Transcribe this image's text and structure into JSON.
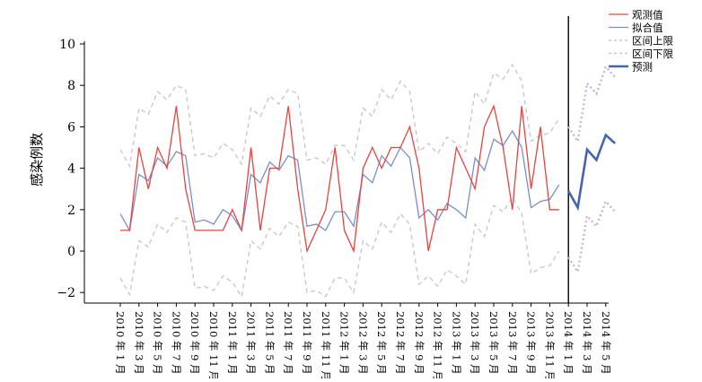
{
  "chart_data": {
    "type": "line",
    "ylabel": "感染例数",
    "ylim": [
      -2.5,
      10.5
    ],
    "yticks": [
      -2,
      0,
      2,
      4,
      6,
      8,
      10
    ],
    "ytick_labels": [
      "−2",
      "0",
      "2",
      "4",
      "6",
      "8",
      "10"
    ],
    "x_tick_labels": [
      "2010 年 1 月",
      "2010 年 3 月",
      "2010 年 5 月",
      "2010 年 7 月",
      "2010 年 9 月",
      "2010 年 11 月",
      "2011 年 1 月",
      "2011 年 3 月",
      "2011 年 5 月",
      "2011 年 7 月",
      "2011 年 9 月",
      "2011 年 11 月",
      "2012 年 1 月",
      "2012 年 3 月",
      "2012 年 5 月",
      "2012 年 7 月",
      "2012 年 9 月",
      "2012 年 11 月",
      "2013 年 1 月",
      "2013 年 3 月",
      "2013 年 5 月",
      "2013 年 7 月",
      "2013 年 9 月",
      "2013 年 11 月",
      "2014 年 1 月",
      "2014 年 3 月",
      "2014 年 5 月"
    ],
    "divider_at": "2014 年 1 月",
    "legend_position": "top-right",
    "series": [
      {
        "name": "观测值",
        "color": "#e8433f",
        "style": "solid",
        "values": [
          1,
          1,
          5,
          3,
          5,
          4,
          7,
          3,
          1,
          1,
          1,
          1,
          2,
          1,
          5,
          1,
          4,
          4,
          7,
          3,
          0,
          1,
          2,
          5,
          1,
          0,
          4,
          5,
          4,
          5,
          5,
          6,
          4,
          0,
          2,
          2,
          5,
          4,
          3,
          6,
          7,
          5,
          2,
          7,
          3,
          6,
          2,
          2
        ]
      },
      {
        "name": "拟合值",
        "color": "#7a8fc7",
        "style": "solid",
        "values": [
          1.8,
          1,
          3.7,
          3.4,
          4.5,
          4.1,
          4.8,
          4.6,
          1.4,
          1.5,
          1.3,
          2,
          1.7,
          1,
          3.7,
          3.3,
          4.3,
          3.9,
          4.6,
          4.4,
          1.2,
          1.3,
          1,
          1.9,
          1.9,
          1.2,
          3.7,
          3.3,
          4.6,
          4.1,
          5,
          4.5,
          1.6,
          2,
          1.5,
          2.3,
          2,
          1.6,
          4.5,
          3.9,
          5.4,
          5.1,
          5.8,
          5,
          2.1,
          2.4,
          2.5,
          3.2
        ]
      },
      {
        "name": "区间上限",
        "color": "#c8c8d2",
        "style": "dashed",
        "values": [
          4.9,
          4.1,
          6.9,
          6.6,
          7.7,
          7.3,
          8,
          7.8,
          4.6,
          4.7,
          4.5,
          5.2,
          4.9,
          4.2,
          6.9,
          6.5,
          7.5,
          7.1,
          7.8,
          7.6,
          4.4,
          4.5,
          4.2,
          5.1,
          5.1,
          4.4,
          6.9,
          6.5,
          7.8,
          7.3,
          8.2,
          7.7,
          4.8,
          5.2,
          4.7,
          5.5,
          5.2,
          4.8,
          7.7,
          7.1,
          8.6,
          8.3,
          9,
          8.2,
          5.3,
          5.6,
          5.7,
          6.4
        ]
      },
      {
        "name": "区间下限",
        "color": "#c8c8d2",
        "style": "dashed",
        "values": [
          -1.3,
          -2.1,
          0.5,
          0.2,
          1.3,
          0.9,
          1.6,
          1.4,
          -1.8,
          -1.7,
          -1.9,
          -1.2,
          -1.5,
          -2.2,
          0.5,
          0.1,
          1.1,
          0.7,
          1.4,
          1.2,
          -2,
          -1.9,
          -2.2,
          -1.3,
          -1.3,
          -2,
          0.5,
          0.1,
          1.4,
          0.9,
          1.8,
          1.3,
          -1.6,
          -1.2,
          -1.7,
          -0.9,
          -1.2,
          -1.6,
          1.3,
          0.7,
          2.2,
          1.9,
          2.6,
          1.8,
          -1.1,
          -0.8,
          -0.7,
          0
        ]
      },
      {
        "name": "预测",
        "color": "#4466b0",
        "style": "solid-thick",
        "values": [
          2.9,
          2.1,
          4.9,
          4.4,
          5.6,
          5.2
        ]
      }
    ],
    "forecast_interval": {
      "upper": [
        6,
        5.3,
        8.1,
        7.6,
        8.9,
        8.4
      ],
      "lower": [
        -0.3,
        -1,
        1.7,
        1.2,
        2.4,
        1.9
      ],
      "color": "#c8b4d2"
    }
  }
}
